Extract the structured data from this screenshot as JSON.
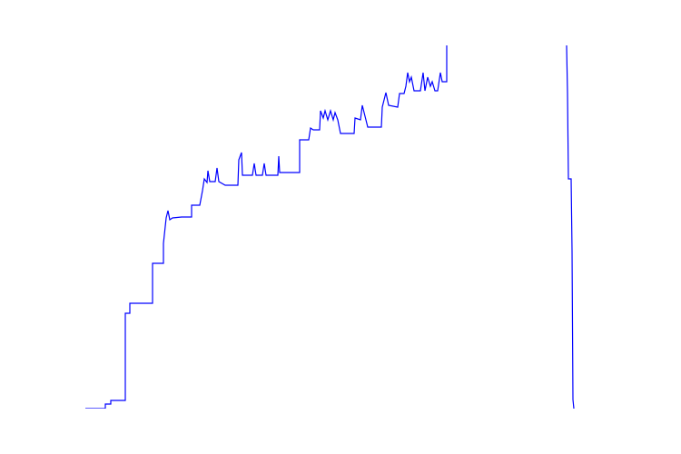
{
  "chart_data": {
    "type": "line",
    "x": [
      0,
      22,
      22,
      28,
      28,
      44,
      44,
      49,
      49,
      74,
      74,
      86,
      86,
      89,
      91,
      93,
      96,
      106,
      117,
      117,
      126,
      129,
      131,
      134,
      135,
      137,
      143,
      145,
      147,
      154,
      168,
      169,
      172,
      173,
      184,
      186,
      188,
      195,
      197,
      199,
      212,
      213,
      214,
      236,
      236,
      246,
      248,
      251,
      258,
      259,
      262,
      264,
      267,
      270,
      273,
      275,
      278,
      281,
      296,
      297,
      303,
      305,
      308,
      311,
      326,
      327,
      331,
      334,
      344,
      346,
      351,
      353,
      355,
      357,
      359,
      362,
      369,
      372,
      374,
      377,
      380,
      382,
      385,
      388,
      391,
      393,
      398,
      398,
      420,
      510,
      530,
      531,
      532,
      535,
      536,
      537,
      538
    ],
    "series": [
      {
        "color": "#0000ff",
        "values": [
          0,
          0,
          5,
          5,
          9,
          9,
          105,
          105,
          116,
          116,
          160,
          160,
          182,
          210,
          218,
          208,
          210,
          211,
          211,
          224,
          224,
          240,
          253,
          249,
          262,
          250,
          250,
          265,
          250,
          246,
          246,
          274,
          282,
          257,
          257,
          270,
          257,
          257,
          270,
          257,
          257,
          278,
          260,
          260,
          296,
          296,
          309,
          307,
          307,
          328,
          320,
          328,
          318,
          328,
          318,
          326,
          318,
          303,
          303,
          320,
          318,
          334,
          322,
          310,
          310,
          332,
          348,
          334,
          332,
          347,
          347,
          355,
          370,
          360,
          365,
          350,
          350,
          370,
          350,
          365,
          355,
          360,
          350,
          350,
          370,
          360,
          360,
          400,
          600,
          600,
          400,
          348,
          253,
          253,
          174,
          10,
          0
        ]
      }
    ],
    "xlim": [
      0,
      581
    ],
    "ylim": [
      0,
      400
    ]
  }
}
